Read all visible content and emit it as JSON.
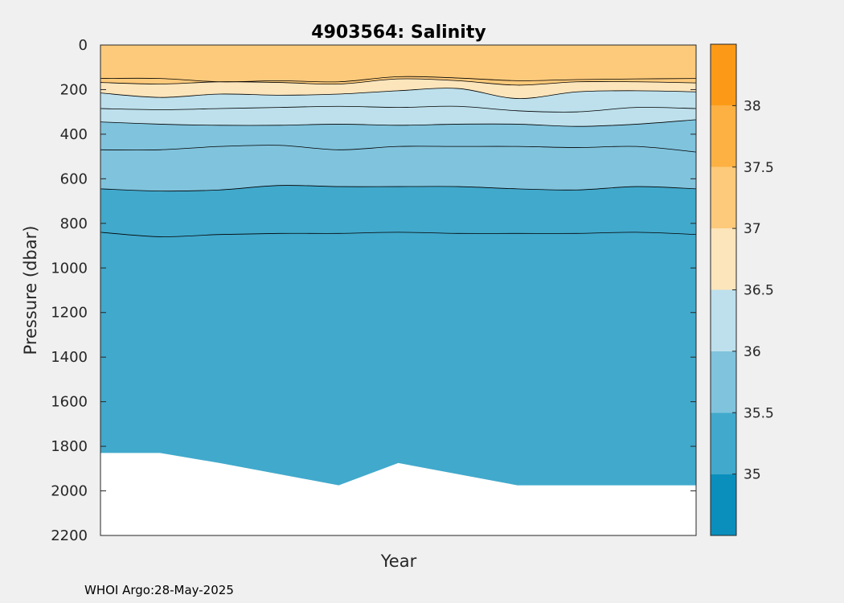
{
  "chart_data": {
    "type": "contourf",
    "title": "4903564:  Salinity",
    "xlabel": "Year",
    "ylabel": "Pressure (dbar)",
    "ylim": [
      0,
      2200
    ],
    "y_reversed": true,
    "yticks": [
      0,
      200,
      400,
      600,
      800,
      1000,
      1200,
      1400,
      1600,
      1800,
      2000,
      2200
    ],
    "colorbar": {
      "range": [
        34.5,
        38.5
      ],
      "ticks": [
        "35",
        "35.5",
        "36",
        "36.5",
        "37",
        "37.5",
        "38"
      ],
      "tick_values": [
        35,
        35.5,
        36,
        36.5,
        37,
        37.5,
        38
      ],
      "levels": [
        {
          "from": 34.5,
          "to": 35.0,
          "color": "#0a8fbd"
        },
        {
          "from": 35.0,
          "to": 35.5,
          "color": "#41a9cc"
        },
        {
          "from": 35.5,
          "to": 36.0,
          "color": "#80c3dd"
        },
        {
          "from": 36.0,
          "to": 36.5,
          "color": "#bde0ec"
        },
        {
          "from": 36.5,
          "to": 37.0,
          "color": "#fce5bb"
        },
        {
          "from": 37.0,
          "to": 37.5,
          "color": "#fdca7b"
        },
        {
          "from": 37.5,
          "to": 38.0,
          "color": "#fdb142"
        },
        {
          "from": 38.0,
          "to": 38.5,
          "color": "#fc9a17"
        }
      ]
    },
    "profile_index": [
      0,
      1,
      2,
      3,
      4,
      5,
      6,
      7,
      8,
      9,
      10
    ],
    "contours": [
      {
        "salinity": 37.0,
        "color": "#fdca7b",
        "pressure": [
          150,
          150,
          165,
          160,
          165,
          142,
          148,
          160,
          155,
          152,
          150
        ]
      },
      {
        "salinity": 36.75,
        "color": "#fdca7b",
        "pressure": [
          168,
          175,
          165,
          168,
          175,
          152,
          160,
          180,
          165,
          165,
          170
        ]
      },
      {
        "salinity": 36.5,
        "color": "#fce5bb",
        "pressure": [
          215,
          235,
          220,
          225,
          220,
          205,
          195,
          240,
          210,
          205,
          210
        ]
      },
      {
        "salinity": 36.25,
        "color": "#bde0ec",
        "pressure": [
          285,
          290,
          285,
          280,
          275,
          280,
          275,
          295,
          300,
          280,
          285
        ]
      },
      {
        "salinity": 36.0,
        "color": "#bde0ec",
        "pressure": [
          345,
          355,
          360,
          360,
          355,
          360,
          355,
          355,
          365,
          355,
          335
        ]
      },
      {
        "salinity": 35.75,
        "color": "#80c3dd",
        "pressure": [
          470,
          470,
          455,
          450,
          470,
          455,
          455,
          455,
          460,
          455,
          480
        ]
      },
      {
        "salinity": 35.5,
        "color": "#80c3dd",
        "pressure": [
          645,
          655,
          650,
          630,
          635,
          635,
          635,
          645,
          650,
          635,
          645
        ]
      },
      {
        "salinity": 35.25,
        "color": "#41a9cc",
        "pressure": [
          840,
          860,
          850,
          845,
          845,
          840,
          845,
          845,
          845,
          840,
          850
        ]
      }
    ],
    "deep_fill_color": "#41a9cc",
    "max_pressure": [
      1830,
      1830,
      1875,
      1925,
      1975,
      1875,
      1925,
      1975,
      1975,
      1975,
      1975
    ]
  },
  "footer": "WHOI Argo:28-May-2025"
}
